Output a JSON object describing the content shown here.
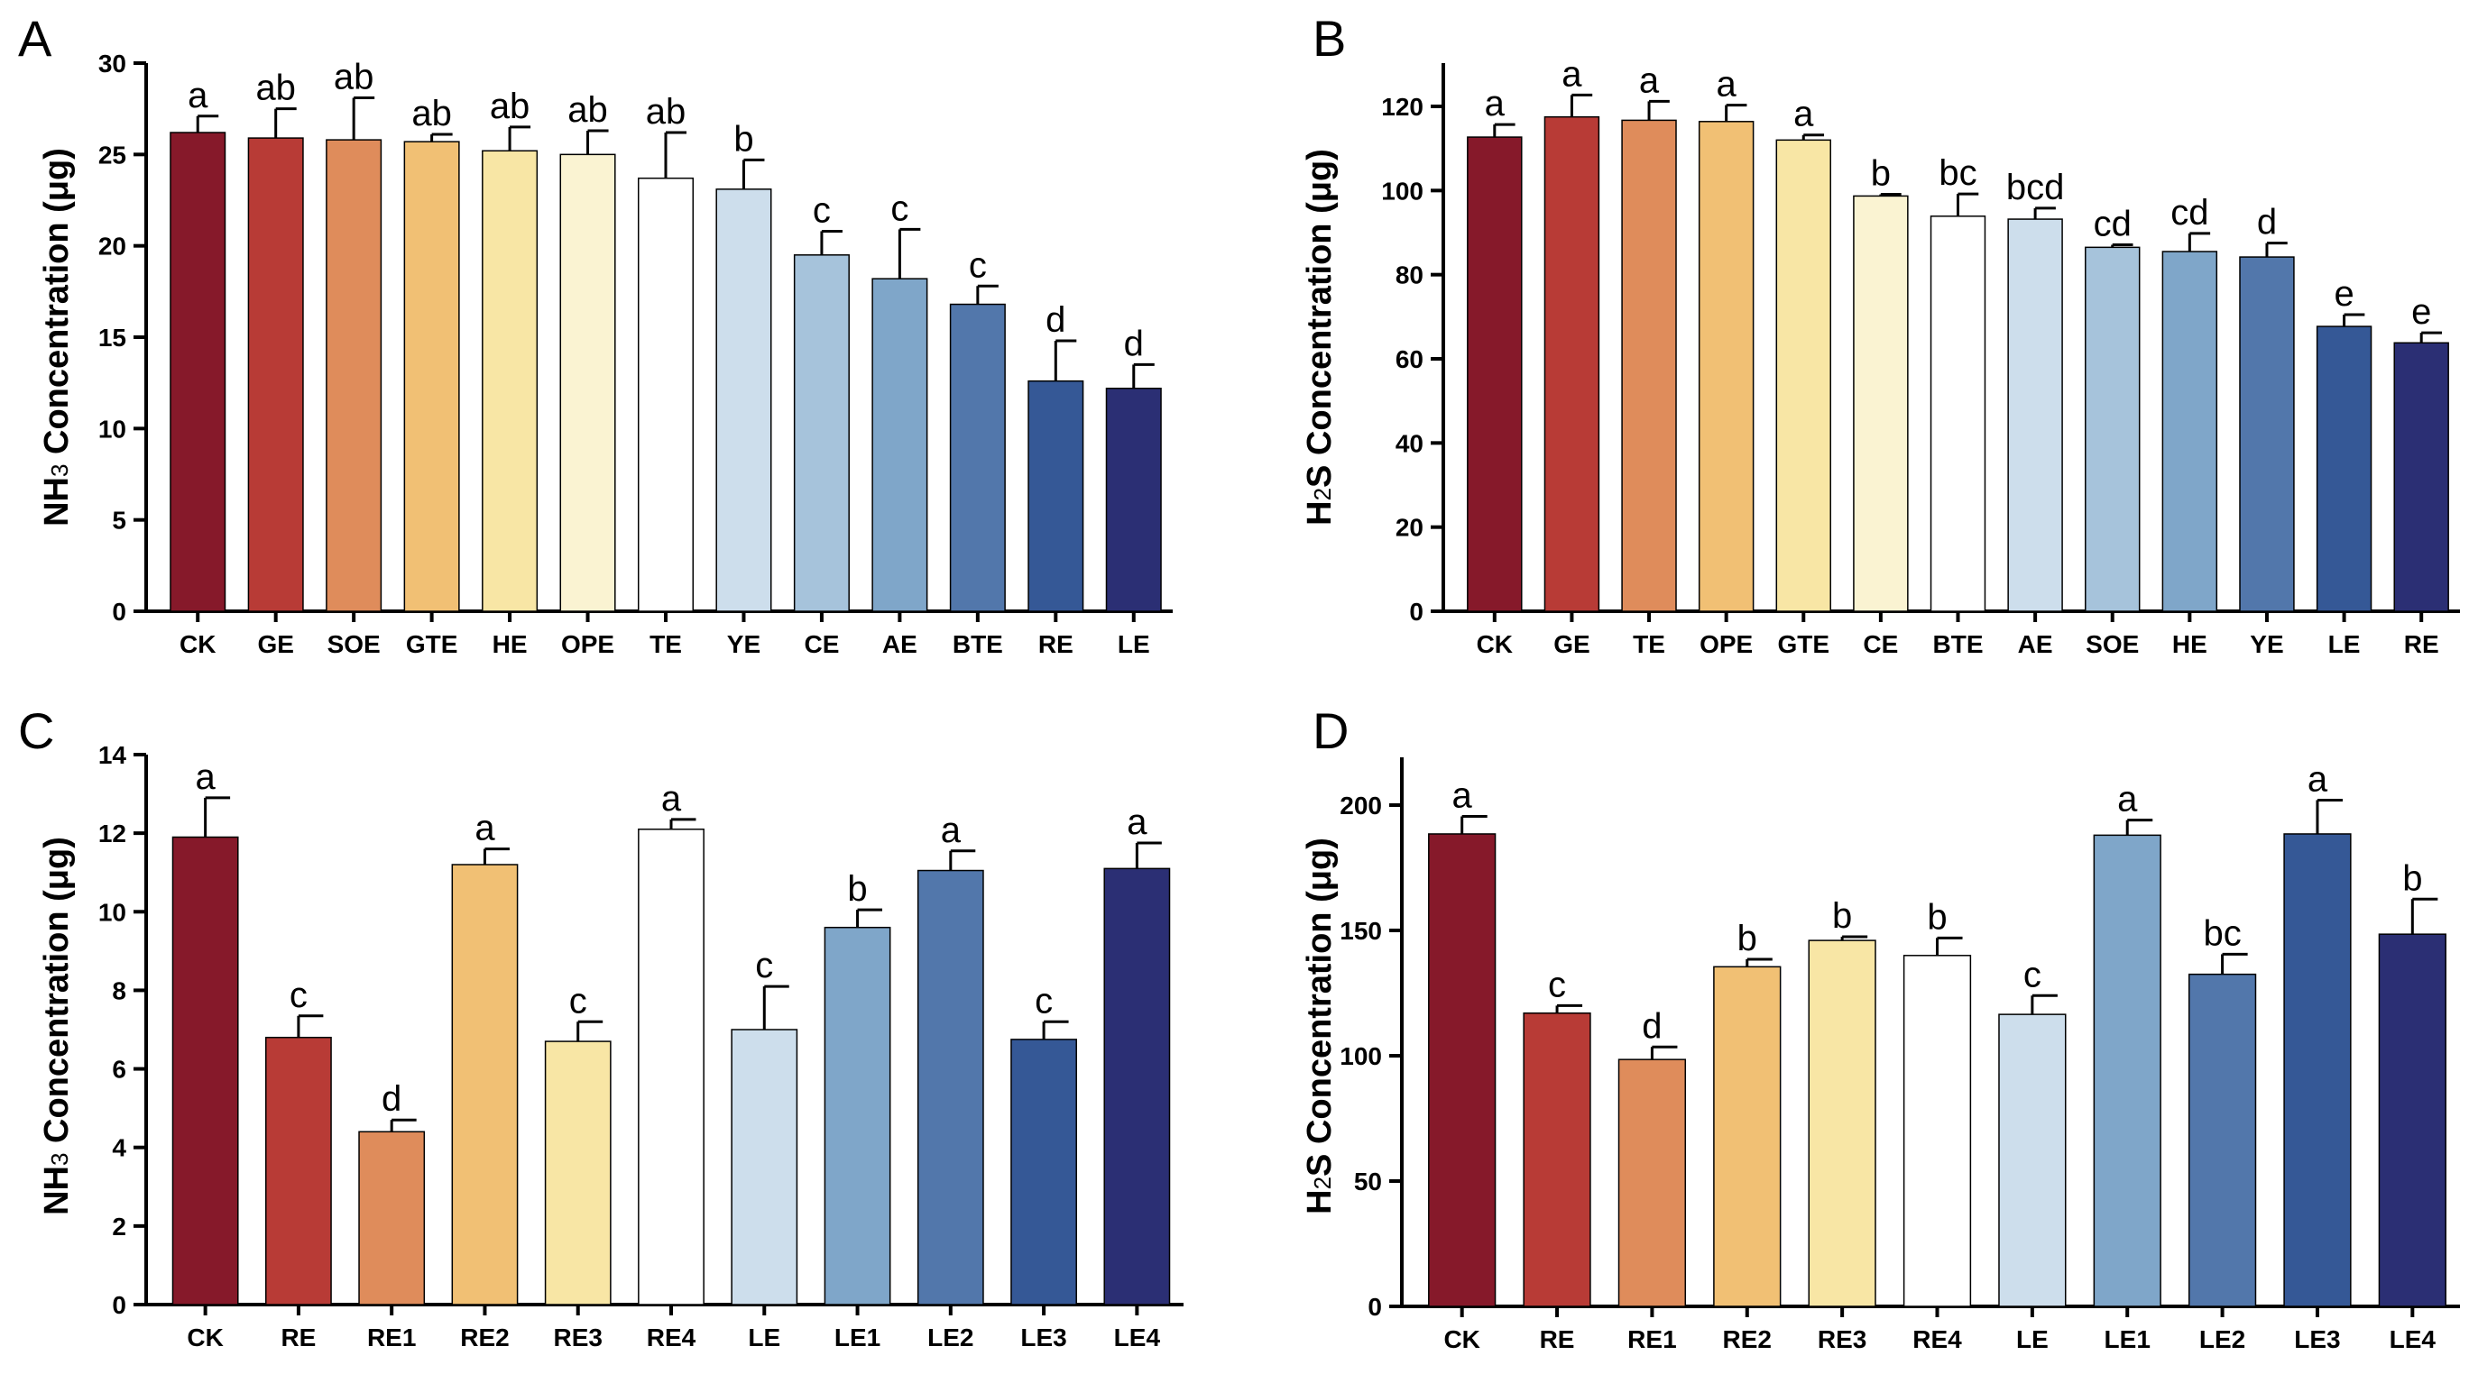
{
  "panel_colors": {
    "13": [
      "#86192a",
      "#b83b36",
      "#df8c5b",
      "#f1c074",
      "#f8e6a5",
      "#faf3d2",
      "#ffffff",
      "#cddeec",
      "#a6c3db",
      "#7fa6c9",
      "#5277ab",
      "#355896",
      "#2b2f74"
    ],
    "11": [
      "#86192a",
      "#b83b36",
      "#df8c5b",
      "#f1c074",
      "#f8e6a5",
      "#ffffff",
      "#cddeec",
      "#7fa6c9",
      "#5277ab",
      "#355896",
      "#2b2f74"
    ]
  },
  "chart_data": [
    {
      "panel_label": "A",
      "type": "bar",
      "ylabel_main": "NH",
      "ylabel_sub": "3",
      "ylabel_rest": " Concentration (μg)",
      "ylim": [
        0,
        30
      ],
      "yticks": [
        0,
        5,
        10,
        15,
        20,
        25,
        30
      ],
      "categories": [
        "CK",
        "GE",
        "SOE",
        "GTE",
        "HE",
        "OPE",
        "TE",
        "YE",
        "CE",
        "AE",
        "BTE",
        "RE",
        "LE"
      ],
      "values": [
        26.2,
        25.9,
        25.8,
        25.7,
        25.2,
        25.0,
        23.7,
        23.1,
        19.5,
        18.2,
        16.8,
        12.6,
        12.2
      ],
      "errors": [
        0.9,
        1.6,
        2.3,
        0.4,
        1.3,
        1.3,
        2.5,
        1.6,
        1.3,
        2.7,
        1.0,
        2.2,
        1.3
      ],
      "letters": [
        "a",
        "ab",
        "ab",
        "ab",
        "ab",
        "ab",
        "ab",
        "b",
        "c",
        "c",
        "c",
        "d",
        "d"
      ]
    },
    {
      "panel_label": "B",
      "type": "bar",
      "ylabel_main": "H",
      "ylabel_sub": "2",
      "ylabel_rest": "S Concentration (μg)",
      "ylim": [
        0,
        130
      ],
      "yticks": [
        0,
        20,
        40,
        60,
        80,
        100,
        120
      ],
      "categories": [
        "CK",
        "GE",
        "TE",
        "OPE",
        "GTE",
        "CE",
        "BTE",
        "AE",
        "SOE",
        "HE",
        "YE",
        "LE",
        "RE"
      ],
      "values": [
        112.7,
        117.5,
        116.7,
        116.4,
        112.0,
        98.7,
        93.9,
        93.2,
        86.5,
        85.5,
        84.2,
        67.7,
        63.8
      ],
      "errors": [
        3.0,
        5.2,
        4.5,
        3.9,
        1.2,
        0.4,
        5.3,
        2.6,
        0.6,
        4.3,
        3.3,
        2.8,
        2.4
      ],
      "letters": [
        "a",
        "a",
        "a",
        "a",
        "a",
        "b",
        "bc",
        "bcd",
        "cd",
        "cd",
        "d",
        "e",
        "e"
      ]
    },
    {
      "panel_label": "C",
      "type": "bar",
      "ylabel_main": "NH",
      "ylabel_sub": "3",
      "ylabel_rest": " Concentration (μg)",
      "ylim": [
        0,
        14
      ],
      "yticks": [
        0,
        2,
        4,
        6,
        8,
        10,
        12,
        14
      ],
      "categories": [
        "CK",
        "RE",
        "RE1",
        "RE2",
        "RE3",
        "RE4",
        "LE",
        "LE1",
        "LE2",
        "LE3",
        "LE4"
      ],
      "values": [
        11.9,
        6.8,
        4.4,
        11.2,
        6.7,
        12.1,
        7.0,
        9.6,
        11.05,
        6.75,
        11.1
      ],
      "errors": [
        1.0,
        0.55,
        0.3,
        0.4,
        0.5,
        0.25,
        1.1,
        0.45,
        0.5,
        0.45,
        0.65
      ],
      "letters": [
        "a",
        "c",
        "d",
        "a",
        "c",
        "a",
        "c",
        "b",
        "a",
        "c",
        "a"
      ]
    },
    {
      "panel_label": "D",
      "type": "bar",
      "ylabel_main": "H",
      "ylabel_sub": "2",
      "ylabel_rest": "S Concentration (μg)",
      "ylim": [
        0,
        220
      ],
      "yticks": [
        0,
        50,
        100,
        150,
        200
      ],
      "categories": [
        "CK",
        "RE",
        "RE1",
        "RE2",
        "RE3",
        "RE4",
        "LE",
        "LE1",
        "LE2",
        "LE3",
        "LE4"
      ],
      "values": [
        188.5,
        117.0,
        98.5,
        135.5,
        146.0,
        140.0,
        116.5,
        188.0,
        132.5,
        188.5,
        148.5
      ],
      "errors": [
        7.0,
        3.0,
        5.0,
        3.0,
        1.5,
        7.0,
        7.5,
        6.0,
        8.0,
        13.5,
        14.0
      ],
      "letters": [
        "a",
        "c",
        "d",
        "b",
        "b",
        "b",
        "c",
        "a",
        "bc",
        "a",
        "b"
      ]
    }
  ]
}
